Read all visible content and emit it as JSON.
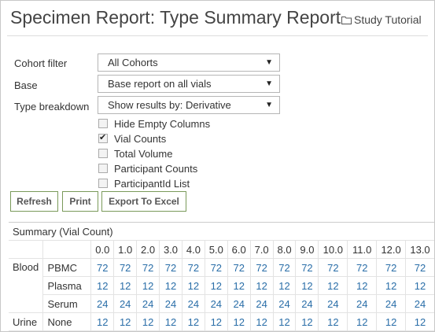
{
  "title": "Specimen Report: Type Summary Report",
  "study_link": "Study Tutorial",
  "filters": {
    "cohort": {
      "label": "Cohort filter",
      "value": "All Cohorts"
    },
    "base": {
      "label": "Base",
      "value": "Base report on all vials"
    },
    "breakdown": {
      "label": "Type breakdown",
      "value": "Show results by: Derivative"
    }
  },
  "options": [
    {
      "label": "Hide Empty Columns",
      "checked": false
    },
    {
      "label": "Vial Counts",
      "checked": true
    },
    {
      "label": "Total Volume",
      "checked": false
    },
    {
      "label": "Participant Counts",
      "checked": false
    },
    {
      "label": "ParticipantId List",
      "checked": false
    }
  ],
  "buttons": {
    "refresh": "Refresh",
    "print": "Print",
    "export": "Export To Excel"
  },
  "summary": {
    "caption": "Summary (Vial Count)",
    "columns": [
      "0.0",
      "1.0",
      "2.0",
      "3.0",
      "4.0",
      "5.0",
      "6.0",
      "7.0",
      "8.0",
      "9.0",
      "10.0",
      "11.0",
      "12.0",
      "13.0"
    ],
    "rows": [
      {
        "group": "Blood",
        "type": "PBMC",
        "values": [
          "72",
          "72",
          "72",
          "72",
          "72",
          "72",
          "72",
          "72",
          "72",
          "72",
          "72",
          "72",
          "72",
          "72"
        ]
      },
      {
        "group": "",
        "type": "Plasma",
        "values": [
          "12",
          "12",
          "12",
          "12",
          "12",
          "12",
          "12",
          "12",
          "12",
          "12",
          "12",
          "12",
          "12",
          "12"
        ]
      },
      {
        "group": "",
        "type": "Serum",
        "values": [
          "24",
          "24",
          "24",
          "24",
          "24",
          "24",
          "24",
          "24",
          "24",
          "24",
          "24",
          "24",
          "24",
          "24"
        ]
      },
      {
        "group": "Urine",
        "type": "None",
        "values": [
          "12",
          "12",
          "12",
          "12",
          "12",
          "12",
          "12",
          "12",
          "12",
          "12",
          "12",
          "12",
          "12",
          "12"
        ]
      }
    ]
  }
}
